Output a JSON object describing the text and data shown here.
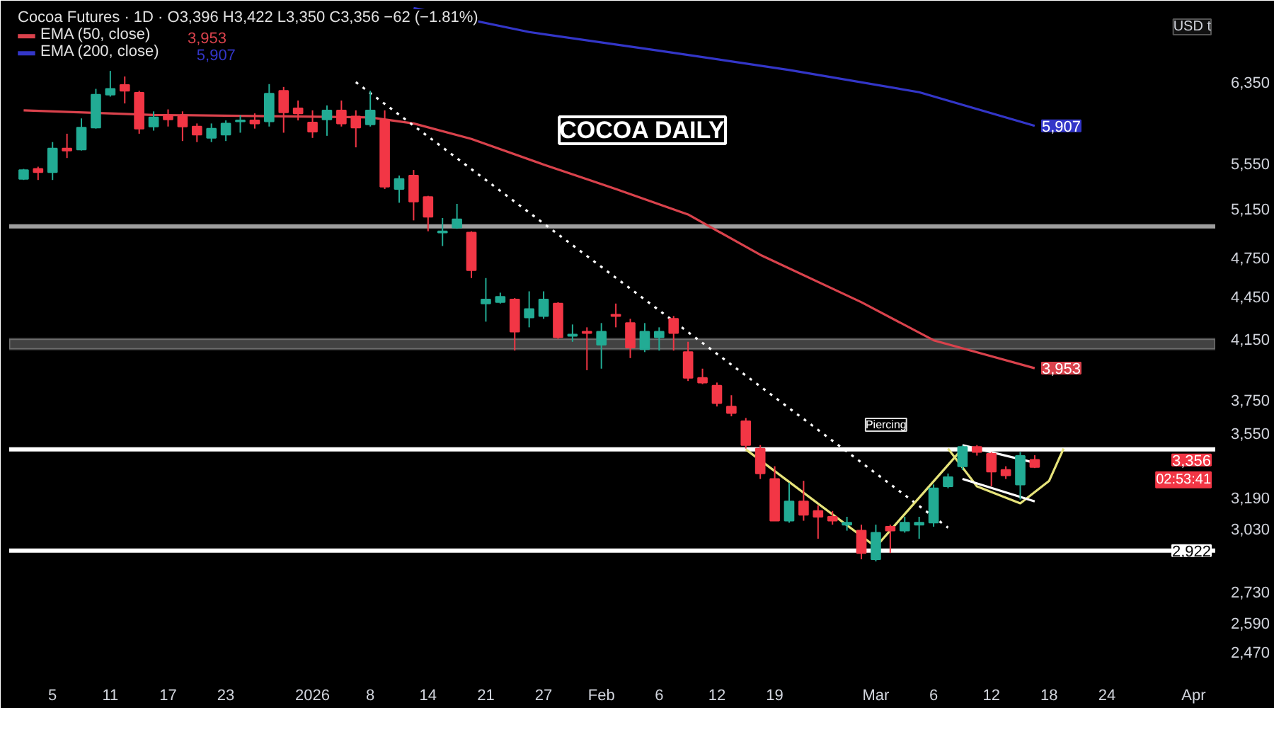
{
  "chart_data": {
    "type": "candlestick",
    "title": "Cocoa Futures · 1D · O3,396 H3,422 L3,350 C3,356 −62 (−1.81%)",
    "ylabel": "USD t",
    "categories": [
      null,
      null,
      "5",
      null,
      null,
      null,
      "11",
      null,
      null,
      null,
      "17",
      null,
      null,
      null,
      "23",
      null,
      null,
      null,
      null,
      null,
      "2026",
      null,
      null,
      null,
      "8",
      null,
      null,
      null,
      "14",
      null,
      null,
      null,
      "21",
      null,
      null,
      null,
      "27",
      null,
      null,
      null,
      "Feb",
      null,
      null,
      null,
      "6",
      null,
      null,
      null,
      "12",
      null,
      null,
      null,
      "19",
      null,
      null,
      null,
      null,
      null,
      null,
      "Mar",
      null,
      null,
      null,
      "6",
      null,
      null,
      null,
      "12",
      null,
      null,
      null,
      "18",
      null,
      null,
      null,
      "24",
      null,
      null,
      null,
      null,
      null,
      "Apr",
      null
    ],
    "ohlc": [
      [
        5410,
        5500,
        5400,
        5490
      ],
      [
        5500,
        5520,
        5400,
        5470
      ],
      [
        5470,
        5750,
        5400,
        5690
      ],
      [
        5690,
        5830,
        5600,
        5670
      ],
      [
        5680,
        5980,
        5670,
        5890
      ],
      [
        5890,
        6280,
        5880,
        6220
      ],
      [
        6220,
        6470,
        6200,
        6280
      ],
      [
        6320,
        6410,
        6130,
        6260
      ],
      [
        6240,
        6260,
        5830,
        5880
      ],
      [
        5900,
        6050,
        5860,
        5990
      ],
      [
        6010,
        6070,
        5900,
        5970
      ],
      [
        6000,
        6050,
        5760,
        5900
      ],
      [
        5900,
        5930,
        5750,
        5820
      ],
      [
        5790,
        5930,
        5750,
        5880
      ],
      [
        5820,
        5960,
        5760,
        5930
      ],
      [
        5950,
        6010,
        5840,
        5960
      ],
      [
        5960,
        6030,
        5880,
        5930
      ],
      [
        5950,
        6330,
        5900,
        6230
      ],
      [
        6260,
        6300,
        5840,
        6040
      ],
      [
        6080,
        6160,
        5960,
        6030
      ],
      [
        5940,
        6060,
        5790,
        5850
      ],
      [
        5970,
        6110,
        5810,
        6060
      ],
      [
        6060,
        6160,
        5900,
        5930
      ],
      [
        6000,
        6060,
        5700,
        5890
      ],
      [
        5920,
        6260,
        5900,
        6060
      ],
      [
        5960,
        6060,
        5320,
        5340
      ],
      [
        5320,
        5440,
        5200,
        5410
      ],
      [
        5440,
        5490,
        5050,
        5210
      ],
      [
        5250,
        5260,
        4960,
        5080
      ],
      [
        4950,
        5070,
        4840,
        4960
      ],
      [
        4990,
        5190,
        4980,
        5060
      ],
      [
        4950,
        4960,
        4590,
        4650
      ],
      [
        4400,
        4590,
        4270,
        4430
      ],
      [
        4410,
        4480,
        4400,
        4450
      ],
      [
        4430,
        4440,
        4070,
        4200
      ],
      [
        4300,
        4490,
        4230,
        4360
      ],
      [
        4310,
        4490,
        4290,
        4430
      ],
      [
        4400,
        4410,
        4150,
        4160
      ],
      [
        4170,
        4250,
        4130,
        4180
      ],
      [
        4200,
        4230,
        3940,
        4190
      ],
      [
        4110,
        4260,
        3950,
        4200
      ],
      [
        4320,
        4400,
        4230,
        4310
      ],
      [
        4260,
        4290,
        4020,
        4090
      ],
      [
        4080,
        4260,
        4060,
        4200
      ],
      [
        4160,
        4230,
        4070,
        4200
      ],
      [
        4290,
        4310,
        4070,
        4190
      ],
      [
        4060,
        4130,
        3870,
        3890
      ],
      [
        3890,
        3950,
        3850,
        3860
      ],
      [
        3840,
        3860,
        3710,
        3730
      ],
      [
        3710,
        3780,
        3650,
        3670
      ],
      [
        3620,
        3640,
        3460,
        3480
      ],
      [
        3460,
        3480,
        3290,
        3320
      ],
      [
        3290,
        3360,
        3070,
        3070
      ],
      [
        3070,
        3270,
        3060,
        3170
      ],
      [
        3170,
        3280,
        3070,
        3100
      ],
      [
        3120,
        3150,
        2980,
        3090
      ],
      [
        3090,
        3120,
        3050,
        3070
      ],
      [
        3050,
        3090,
        3020,
        3060
      ],
      [
        3020,
        3050,
        2880,
        2910
      ],
      [
        2880,
        3050,
        2870,
        3010
      ],
      [
        3040,
        3050,
        2910,
        3020
      ],
      [
        3020,
        3090,
        3010,
        3060
      ],
      [
        3050,
        3090,
        2980,
        3060
      ],
      [
        3060,
        3260,
        3040,
        3240
      ],
      [
        3250,
        3320,
        3240,
        3300
      ],
      [
        3360,
        3480,
        3340,
        3470
      ],
      [
        3470,
        3480,
        3420,
        3440
      ],
      [
        3430,
        3440,
        3250,
        3330
      ],
      [
        3340,
        3360,
        3290,
        3310
      ],
      [
        3260,
        3440,
        3180,
        3418
      ],
      [
        3396,
        3422,
        3350,
        3356
      ],
      null,
      null,
      null,
      null,
      null,
      null,
      null,
      null,
      null,
      null,
      null,
      null
    ],
    "colors": [
      "#22ab94",
      "#f23645",
      "#22ab94",
      "#f23645",
      "#22ab94",
      "#22ab94",
      "#22ab94",
      "#f23645",
      "#f23645",
      "#22ab94",
      "#f23645",
      "#f23645",
      "#f23645",
      "#22ab94",
      "#22ab94",
      "#22ab94",
      "#f23645",
      "#22ab94",
      "#f23645",
      "#f23645",
      "#f23645",
      "#22ab94",
      "#f23645",
      "#f23645",
      "#22ab94",
      "#f23645",
      "#22ab94",
      "#f23645",
      "#f23645",
      "#22ab94",
      "#22ab94",
      "#f23645",
      "#22ab94",
      "#22ab94",
      "#f23645",
      "#22ab94",
      "#22ab94",
      "#f23645",
      "#22ab94",
      "#f23645",
      "#22ab94",
      "#f23645",
      "#f23645",
      "#22ab94",
      "#22ab94",
      "#f23645",
      "#f23645",
      "#f23645",
      "#f23645",
      "#f23645",
      "#f23645",
      "#f23645",
      "#f23645",
      "#22ab94",
      "#f23645",
      "#f23645",
      "#f23645",
      "#22ab94",
      "#f23645",
      "#22ab94",
      "#f23645",
      "#22ab94",
      "#22ab94",
      "#22ab94",
      "#22ab94",
      "#22ab94",
      "#f23645",
      "#f23645",
      "#f23645",
      "#22ab94",
      "#f23645",
      null,
      null,
      null,
      null,
      null,
      null,
      null,
      null,
      null,
      null,
      null,
      null
    ],
    "value_labels": [
      null,
      null,
      null,
      null,
      null,
      null,
      null,
      null,
      null,
      null,
      null,
      null,
      null,
      null,
      null,
      null,
      null,
      null,
      null,
      null,
      null,
      null,
      null,
      null,
      null,
      null,
      null,
      null,
      null,
      null,
      null,
      null,
      null,
      null,
      null,
      null,
      null,
      null,
      null,
      null,
      null,
      null,
      null,
      null,
      null,
      null,
      null,
      null,
      null,
      null,
      null,
      null,
      null,
      null,
      null,
      null,
      null,
      null,
      null,
      null,
      null,
      null,
      null,
      null,
      null,
      null,
      null,
      null,
      null,
      null,
      "3,356",
      null,
      null,
      null,
      null,
      null,
      null,
      null,
      null,
      null,
      null,
      null,
      null
    ],
    "series": [
      {
        "type": "line",
        "name": "EMA (50, close)",
        "color": "#d9424c",
        "values": [
          6060,
          null,
          null,
          null,
          null,
          null,
          null,
          null,
          null,
          6015,
          null,
          null,
          null,
          null,
          null,
          null,
          null,
          null,
          null,
          null,
          null,
          null,
          null,
          null,
          5990,
          null,
          null,
          5930,
          null,
          null,
          null,
          5780,
          null,
          null,
          null,
          null,
          5540,
          null,
          null,
          null,
          null,
          5320,
          null,
          null,
          null,
          null,
          5100,
          null,
          null,
          null,
          null,
          4770,
          null,
          null,
          null,
          null,
          null,
          null,
          4410,
          null,
          null,
          null,
          null,
          4140,
          null,
          null,
          null,
          null,
          null,
          null,
          3953,
          null,
          null,
          null,
          null,
          null,
          null,
          null,
          null,
          null,
          null,
          null,
          null
        ],
        "value_labels": [
          null,
          null,
          null,
          null,
          null,
          null,
          null,
          null,
          null,
          null,
          null,
          null,
          null,
          null,
          null,
          null,
          null,
          null,
          null,
          null,
          null,
          null,
          null,
          null,
          null,
          null,
          null,
          null,
          null,
          null,
          null,
          null,
          null,
          null,
          null,
          null,
          null,
          null,
          null,
          null,
          null,
          null,
          null,
          null,
          null,
          null,
          null,
          null,
          null,
          null,
          null,
          null,
          null,
          null,
          null,
          null,
          null,
          null,
          null,
          null,
          null,
          null,
          null,
          null,
          null,
          null,
          null,
          null,
          null,
          null,
          "3,953",
          null,
          null,
          null,
          null,
          null,
          null,
          null,
          null,
          null,
          null,
          null,
          null
        ]
      },
      {
        "type": "line",
        "name": "EMA (200, close)",
        "color": "#3336c8",
        "values": [
          null,
          null,
          null,
          null,
          null,
          null,
          null,
          null,
          null,
          null,
          null,
          null,
          null,
          null,
          null,
          null,
          null,
          null,
          null,
          null,
          null,
          null,
          null,
          null,
          null,
          null,
          null,
          7180,
          null,
          null,
          null,
          null,
          null,
          null,
          null,
          6900,
          null,
          null,
          null,
          null,
          null,
          null,
          null,
          null,
          6690,
          null,
          null,
          null,
          null,
          null,
          null,
          null,
          null,
          6480,
          null,
          null,
          null,
          null,
          null,
          null,
          null,
          null,
          6245,
          null,
          null,
          null,
          null,
          null,
          null,
          null,
          5907,
          null,
          null,
          null,
          null,
          null,
          null,
          null,
          null,
          null,
          null,
          null,
          null
        ],
        "value_labels": [
          null,
          null,
          null,
          null,
          null,
          null,
          null,
          null,
          null,
          null,
          null,
          null,
          null,
          null,
          null,
          null,
          null,
          null,
          null,
          null,
          null,
          null,
          null,
          null,
          null,
          null,
          null,
          null,
          null,
          null,
          null,
          null,
          null,
          null,
          null,
          null,
          null,
          null,
          null,
          null,
          null,
          null,
          null,
          null,
          null,
          null,
          null,
          null,
          null,
          null,
          null,
          null,
          null,
          null,
          null,
          null,
          null,
          null,
          null,
          null,
          null,
          null,
          null,
          null,
          null,
          null,
          null,
          null,
          null,
          null,
          "5,907",
          null,
          null,
          null,
          null,
          null,
          null,
          null,
          null,
          null,
          null,
          null,
          null
        ]
      },
      {
        "type": "line",
        "color": "#ffffff",
        "line_style": "dotted",
        "values": [
          null,
          null,
          null,
          null,
          null,
          null,
          null,
          null,
          null,
          null,
          null,
          null,
          null,
          null,
          null,
          null,
          null,
          null,
          null,
          null,
          null,
          null,
          null,
          6350,
          null,
          null,
          null,
          null,
          null,
          null,
          null,
          null,
          null,
          null,
          null,
          null,
          null,
          null,
          null,
          null,
          null,
          null,
          null,
          null,
          null,
          null,
          null,
          null,
          null,
          null,
          null,
          null,
          null,
          null,
          null,
          null,
          null,
          null,
          null,
          null,
          null,
          null,
          null,
          null,
          3035,
          null,
          null,
          null,
          null,
          null,
          null,
          null,
          null,
          null,
          null,
          null,
          null,
          null,
          null,
          null,
          null,
          null,
          null
        ]
      },
      {
        "type": "line",
        "color": "#e6e37a",
        "values": [
          null,
          null,
          null,
          null,
          null,
          null,
          null,
          null,
          null,
          null,
          null,
          null,
          null,
          null,
          null,
          null,
          null,
          null,
          null,
          null,
          null,
          null,
          null,
          null,
          null,
          null,
          null,
          null,
          null,
          null,
          null,
          null,
          null,
          null,
          null,
          null,
          null,
          null,
          null,
          null,
          null,
          null,
          null,
          null,
          null,
          null,
          null,
          null,
          null,
          null,
          3455,
          null,
          null,
          null,
          null,
          null,
          null,
          null,
          null,
          2940,
          null,
          null,
          null,
          null,
          null,
          3460,
          null,
          null,
          null,
          null,
          null,
          null,
          null,
          null,
          null,
          null,
          null,
          null,
          null,
          null,
          null,
          null,
          null
        ]
      },
      {
        "type": "line",
        "color": "#e6e37a",
        "values": [
          null,
          null,
          null,
          null,
          null,
          null,
          null,
          null,
          null,
          null,
          null,
          null,
          null,
          null,
          null,
          null,
          null,
          null,
          null,
          null,
          null,
          null,
          null,
          null,
          null,
          null,
          null,
          null,
          null,
          null,
          null,
          null,
          null,
          null,
          null,
          null,
          null,
          null,
          null,
          null,
          null,
          null,
          null,
          null,
          null,
          null,
          null,
          null,
          null,
          null,
          null,
          null,
          null,
          null,
          null,
          null,
          null,
          null,
          null,
          null,
          null,
          null,
          null,
          null,
          3460,
          null,
          3250,
          null,
          null,
          3160,
          null,
          3280,
          3460,
          null,
          null,
          null,
          null,
          null,
          null,
          null,
          null,
          null,
          null
        ]
      },
      {
        "type": "line",
        "color": "#ffffff",
        "values": [
          null,
          null,
          null,
          null,
          null,
          null,
          null,
          null,
          null,
          null,
          null,
          null,
          null,
          null,
          null,
          null,
          null,
          null,
          null,
          null,
          null,
          null,
          null,
          null,
          null,
          null,
          null,
          null,
          null,
          null,
          null,
          null,
          null,
          null,
          null,
          null,
          null,
          null,
          null,
          null,
          null,
          null,
          null,
          null,
          null,
          null,
          null,
          null,
          null,
          null,
          null,
          null,
          null,
          null,
          null,
          null,
          null,
          null,
          null,
          null,
          null,
          null,
          null,
          null,
          null,
          3480,
          null,
          null,
          null,
          null,
          3380,
          null,
          null,
          null,
          null,
          null,
          null,
          null,
          null,
          null,
          null,
          null,
          null
        ]
      },
      {
        "type": "line",
        "color": "#ffffff",
        "values": [
          null,
          null,
          null,
          null,
          null,
          null,
          null,
          null,
          null,
          null,
          null,
          null,
          null,
          null,
          null,
          null,
          null,
          null,
          null,
          null,
          null,
          null,
          null,
          null,
          null,
          null,
          null,
          null,
          null,
          null,
          null,
          null,
          null,
          null,
          null,
          null,
          null,
          null,
          null,
          null,
          null,
          null,
          null,
          null,
          null,
          null,
          null,
          null,
          null,
          null,
          null,
          null,
          null,
          null,
          null,
          null,
          null,
          null,
          null,
          null,
          null,
          null,
          null,
          null,
          null,
          3290,
          null,
          null,
          null,
          null,
          3170,
          null,
          null,
          null,
          null,
          null,
          null,
          null,
          null,
          null,
          null,
          null,
          null
        ]
      }
    ],
    "ylim": [
      2390,
      7200
    ],
    "log": true,
    "yticks": [
      {
        "value": 6350,
        "label": "6,350"
      },
      {
        "value": 5550,
        "label": "5,550"
      },
      {
        "value": 5150,
        "label": "5,150"
      },
      {
        "value": 4750,
        "label": "4,750"
      },
      {
        "value": 4450,
        "label": "4,450"
      },
      {
        "value": 4150,
        "label": "4,150"
      },
      {
        "value": 3750,
        "label": "3,750"
      },
      {
        "value": 3550,
        "label": "3,550"
      },
      {
        "value": 3190,
        "label": "3,190"
      },
      {
        "value": 3030,
        "label": "3,030"
      },
      {
        "value": 2730,
        "label": "2,730"
      },
      {
        "value": 2590,
        "label": "2,590"
      },
      {
        "value": 2470,
        "label": "2,470"
      }
    ],
    "ref_lines": [
      {
        "axis": "y",
        "value": 2922,
        "label": "2,922",
        "color": "#ffffff"
      },
      {
        "axis": "y",
        "value": 5000,
        "color": "#9e9e9e"
      },
      {
        "axis": "y",
        "value": 3455,
        "color": "#ffffff"
      }
    ],
    "bands": [
      {
        "axis": "y",
        "from": 4080,
        "to": 4150,
        "color": "#787878"
      }
    ],
    "annotations": [
      "COCOA DAILY",
      "Piercing",
      "02:53:41"
    ],
    "legend": "top left",
    "grid": false
  }
}
